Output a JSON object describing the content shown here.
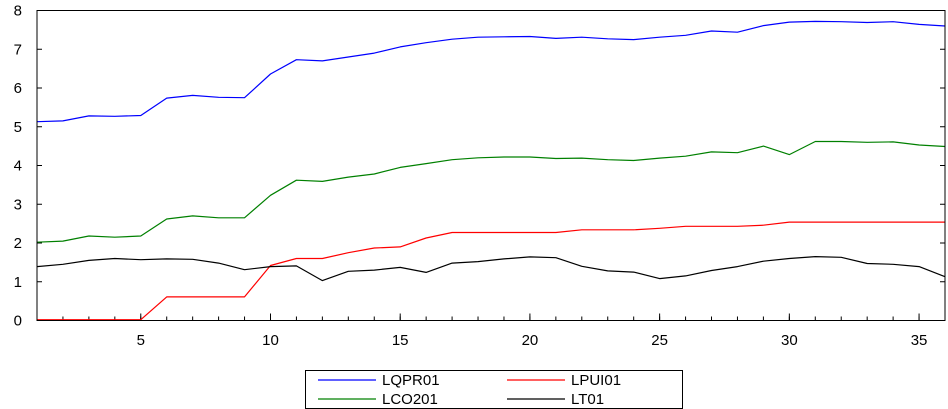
{
  "chart_data": {
    "type": "line",
    "xlim": [
      1,
      36
    ],
    "ylim": [
      0,
      8
    ],
    "xticks": [
      "5",
      "10",
      "15",
      "20",
      "25",
      "30",
      "35"
    ],
    "yticks": [
      "0",
      "1",
      "2",
      "3",
      "4",
      "5",
      "6",
      "7",
      "8"
    ],
    "legend_position": "bottom-center",
    "grid": false,
    "x": [
      1,
      2,
      3,
      4,
      5,
      6,
      7,
      8,
      9,
      10,
      11,
      12,
      13,
      14,
      15,
      16,
      17,
      18,
      19,
      20,
      21,
      22,
      23,
      24,
      25,
      26,
      27,
      28,
      29,
      30,
      31,
      32,
      33,
      34,
      35,
      36
    ],
    "series": [
      {
        "name": "LQPR01",
        "color": "#0000ff",
        "values": [
          5.13,
          5.15,
          5.28,
          5.27,
          5.29,
          5.74,
          5.81,
          5.76,
          5.75,
          6.36,
          6.73,
          6.7,
          6.8,
          6.9,
          7.06,
          7.17,
          7.26,
          7.31,
          7.32,
          7.33,
          7.28,
          7.31,
          7.27,
          7.25,
          7.31,
          7.36,
          7.47,
          7.44,
          7.61,
          7.7,
          7.72,
          7.71,
          7.69,
          7.71,
          7.64,
          7.6
        ]
      },
      {
        "name": "LPUI01",
        "color": "#ff0000",
        "values": [
          0.02,
          0.02,
          0.02,
          0.02,
          0.02,
          0.61,
          0.61,
          0.61,
          0.61,
          1.42,
          1.6,
          1.6,
          1.75,
          1.87,
          1.9,
          2.13,
          2.27,
          2.27,
          2.27,
          2.27,
          2.27,
          2.34,
          2.34,
          2.34,
          2.38,
          2.43,
          2.43,
          2.43,
          2.46,
          2.54,
          2.54,
          2.54,
          2.54,
          2.54,
          2.54,
          2.54
        ]
      },
      {
        "name": "LCO201",
        "color": "#008000",
        "values": [
          2.02,
          2.05,
          2.18,
          2.15,
          2.18,
          2.62,
          2.7,
          2.65,
          2.65,
          3.23,
          3.62,
          3.59,
          3.7,
          3.78,
          3.95,
          4.05,
          4.15,
          4.2,
          4.22,
          4.22,
          4.18,
          4.19,
          4.15,
          4.13,
          4.19,
          4.24,
          4.35,
          4.33,
          4.5,
          4.28,
          4.62,
          4.62,
          4.6,
          4.61,
          4.53,
          4.49
        ]
      },
      {
        "name": "LT01",
        "color": "#000000",
        "values": [
          1.39,
          1.45,
          1.55,
          1.6,
          1.57,
          1.59,
          1.58,
          1.48,
          1.31,
          1.39,
          1.41,
          1.03,
          1.27,
          1.3,
          1.37,
          1.24,
          1.48,
          1.52,
          1.59,
          1.64,
          1.62,
          1.4,
          1.28,
          1.25,
          1.08,
          1.15,
          1.29,
          1.39,
          1.53,
          1.6,
          1.65,
          1.63,
          1.47,
          1.45,
          1.39,
          1.13
        ]
      }
    ]
  }
}
